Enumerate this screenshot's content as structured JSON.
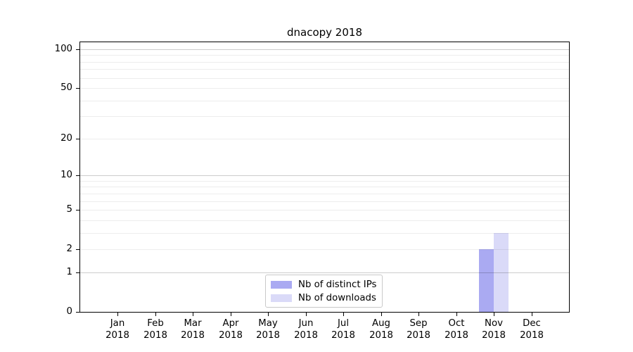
{
  "title": "dnacopy 2018",
  "chart_data": {
    "type": "bar",
    "title": "dnacopy 2018",
    "categories": [
      {
        "month": "Jan",
        "year": "2018"
      },
      {
        "month": "Feb",
        "year": "2018"
      },
      {
        "month": "Mar",
        "year": "2018"
      },
      {
        "month": "Apr",
        "year": "2018"
      },
      {
        "month": "May",
        "year": "2018"
      },
      {
        "month": "Jun",
        "year": "2018"
      },
      {
        "month": "Jul",
        "year": "2018"
      },
      {
        "month": "Aug",
        "year": "2018"
      },
      {
        "month": "Sep",
        "year": "2018"
      },
      {
        "month": "Oct",
        "year": "2018"
      },
      {
        "month": "Nov",
        "year": "2018"
      },
      {
        "month": "Dec",
        "year": "2018"
      }
    ],
    "series": [
      {
        "name": "Nb of distinct IPs",
        "color": "#aaaaf2",
        "values": [
          0,
          0,
          0,
          0,
          0,
          0,
          0,
          0,
          0,
          0,
          2,
          0
        ]
      },
      {
        "name": "Nb of downloads",
        "color": "#dadaf8",
        "values": [
          0,
          0,
          0,
          0,
          0,
          0,
          0,
          0,
          0,
          0,
          3,
          0
        ]
      }
    ],
    "y_axis": {
      "scale": "log1p",
      "ymax": 100,
      "labeled_ticks": [
        0,
        1,
        2,
        5,
        10,
        20,
        50,
        100
      ],
      "major_gridlines": [
        1,
        10,
        100
      ],
      "minor_gridlines": [
        2,
        3,
        4,
        5,
        6,
        7,
        8,
        9,
        20,
        30,
        40,
        50,
        60,
        70,
        80,
        90
      ]
    },
    "legend_position": "lower center",
    "grid": "on"
  },
  "colors": {
    "bar_distinct_ips": "#aaaaf2",
    "bar_downloads": "#dadaf8",
    "axis": "#000000",
    "legend_border": "#c9c9c9"
  }
}
